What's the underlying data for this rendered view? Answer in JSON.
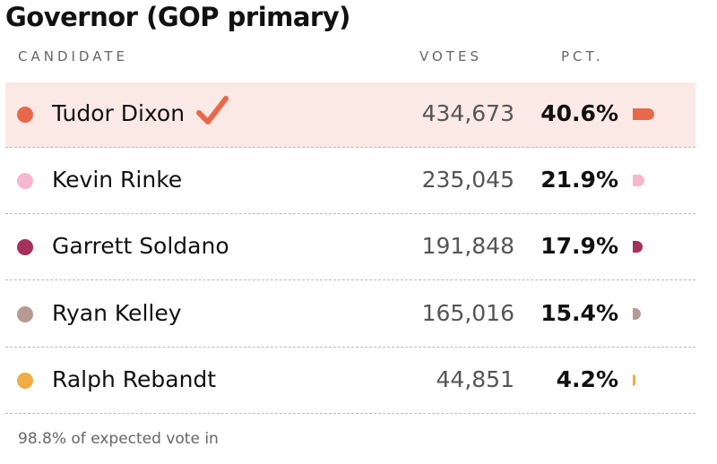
{
  "header": {
    "title": "Governor (GOP primary)"
  },
  "table": {
    "columns": [
      "CANDIDATE",
      "VOTES",
      "PCT."
    ],
    "rows": [
      {
        "name": "Tudor Dixon",
        "color": "#e8694a",
        "votes": "434,673",
        "pct": {
          "value": 40.6,
          "label": "40.6%"
        },
        "winner": true
      },
      {
        "name": "Kevin Rinke",
        "color": "#f6b8cf",
        "votes": "235,045",
        "pct": {
          "value": 21.9,
          "label": "21.9%"
        },
        "winner": false
      },
      {
        "name": "Garrett Soldano",
        "color": "#a7305c",
        "votes": "191,848",
        "pct": {
          "value": 17.9,
          "label": "17.9%"
        },
        "winner": false
      },
      {
        "name": "Ryan Kelley",
        "color": "#b59a94",
        "votes": "165,016",
        "pct": {
          "value": 15.4,
          "label": "15.4%"
        },
        "winner": false
      },
      {
        "name": "Ralph Rebandt",
        "color": "#f0ad45",
        "votes": "44,851",
        "pct": {
          "value": 4.2,
          "label": "4.2%"
        },
        "winner": false
      }
    ]
  },
  "footer": {
    "note": "98.8% of expected vote in"
  }
}
